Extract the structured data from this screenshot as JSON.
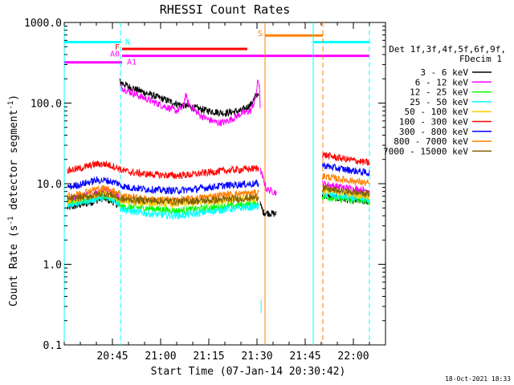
{
  "chart_data": {
    "type": "line",
    "title": "RHESSI Count Rates",
    "xlabel": "Start Time (07-Jan-14 20:30:42)",
    "ylabel_main": "Count Rate (s",
    "ylabel_sup1": "-1",
    "ylabel_mid": " detector segment",
    "ylabel_sup2": "-1",
    "ylabel_end": ")",
    "y_scale": "log",
    "xlim_minutes_after_2030": [
      0,
      100
    ],
    "ylim": [
      0.1,
      1000
    ],
    "x_ticks": [
      {
        "minute": 15,
        "label": "20:45"
      },
      {
        "minute": 30,
        "label": "21:00"
      },
      {
        "minute": 45,
        "label": "21:15"
      },
      {
        "minute": 60,
        "label": "21:30"
      },
      {
        "minute": 75,
        "label": "21:45"
      },
      {
        "minute": 90,
        "label": "22:00"
      }
    ],
    "y_ticks": [
      {
        "value": 0.1,
        "label": "0.1"
      },
      {
        "value": 1,
        "label": "1.0"
      },
      {
        "value": 10,
        "label": "10.0"
      },
      {
        "value": 100,
        "label": "100.0"
      },
      {
        "value": 1000,
        "label": "1000.0"
      }
    ],
    "legend": {
      "placement": "right",
      "header1": "Det 1f,3f,4f,5f,6f,9f,",
      "header2": "FDecim 1"
    },
    "series": [
      {
        "name": "3 - 6 keV",
        "color": "#000000",
        "segments": [
          {
            "x": [
              1,
              8,
              12,
              15,
              17.2
            ],
            "y": [
              5.0,
              5.8,
              6.6,
              6.0,
              5.3
            ]
          },
          {
            "x": [
              17.3,
              20,
              25,
              30,
              35,
              40,
              45,
              50,
              55,
              58,
              59.5,
              60.5
            ],
            "y": [
              185,
              160,
              135,
              115,
              98,
              88,
              80,
              75,
              80,
              95,
              120,
              135
            ]
          },
          {
            "x": [
              61,
              62,
              66
            ],
            "y": [
              5.5,
              4.4,
              4.2
            ]
          },
          {
            "x": [
              80.3,
              85,
              90,
              95
            ],
            "y": [
              7.2,
              6.6,
              6.2,
              6.0
            ]
          }
        ]
      },
      {
        "name": "6 - 12 keV",
        "color": "#ff00ff",
        "segments": [
          {
            "x": [
              1,
              8,
              12,
              15,
              17.2
            ],
            "y": [
              6.2,
              7.4,
              8.4,
              7.8,
              6.8
            ]
          },
          {
            "x": [
              17.3,
              20,
              25,
              30,
              35,
              37,
              37.8,
              38.5,
              42,
              45,
              48,
              50,
              53,
              55,
              58,
              59.5,
              60.3,
              60.8,
              61
            ],
            "y": [
              160,
              140,
              115,
              95,
              80,
              88,
              128,
              100,
              72,
              62,
              57,
              58,
              66,
              74,
              80,
              110,
              190,
              170,
              80
            ]
          },
          {
            "x": [
              61.1,
              63,
              66
            ],
            "y": [
              14.5,
              8.5,
              7.8
            ]
          },
          {
            "x": [
              80.3,
              85,
              90,
              95
            ],
            "y": [
              10.0,
              9.2,
              8.6,
              8.2
            ]
          }
        ]
      },
      {
        "name": "12 - 25 keV",
        "color": "#00ff00",
        "segments": [
          {
            "x": [
              1,
              8,
              12,
              15,
              17.2
            ],
            "y": [
              5.6,
              6.4,
              7.0,
              6.6,
              5.8
            ]
          },
          {
            "x": [
              17.3,
              25,
              35,
              45,
              55,
              60.5
            ],
            "y": [
              5.2,
              5.0,
              4.6,
              5.0,
              5.4,
              5.6
            ]
          },
          {
            "x": [
              80.3,
              85,
              90,
              95
            ],
            "y": [
              7.0,
              6.5,
              6.2,
              6.0
            ]
          }
        ]
      },
      {
        "name": "25 - 50 keV",
        "color": "#00ffff",
        "segments": [
          {
            "x": [
              1,
              8,
              12,
              15,
              17.2
            ],
            "y": [
              5.4,
              6.2,
              6.8,
              6.3,
              5.6
            ]
          },
          {
            "x": [
              17.3,
              20,
              25,
              30,
              35,
              40,
              45,
              50,
              55,
              60.5
            ],
            "y": [
              5.0,
              4.6,
              4.3,
              4.1,
              4.0,
              4.2,
              4.5,
              4.8,
              5.0,
              5.2
            ]
          },
          {
            "x": [
              61.3,
              61.3
            ],
            "y": [
              0.25,
              0.36
            ]
          },
          {
            "x": [
              80.3,
              85,
              90,
              95
            ],
            "y": [
              7.5,
              7.0,
              6.6,
              6.3
            ]
          }
        ]
      },
      {
        "name": "50 - 100 keV",
        "color": "#ffcc00",
        "segments": [
          {
            "x": [
              1,
              8,
              12,
              15,
              17.2
            ],
            "y": [
              6.0,
              7.0,
              7.6,
              7.1,
              6.4
            ]
          },
          {
            "x": [
              17.3,
              25,
              35,
              45,
              55,
              60.5
            ],
            "y": [
              6.0,
              5.8,
              5.6,
              6.0,
              6.4,
              6.6
            ]
          },
          {
            "x": [
              80.3,
              85,
              90,
              95
            ],
            "y": [
              8.3,
              7.8,
              7.4,
              7.0
            ]
          }
        ]
      },
      {
        "name": "100 - 300 keV",
        "color": "#ff0000",
        "segments": [
          {
            "x": [
              1,
              5,
              10,
              13,
              15,
              17.2
            ],
            "y": [
              14.5,
              15.5,
              17.5,
              17.5,
              16.5,
              15.5
            ]
          },
          {
            "x": [
              17.3,
              20,
              25,
              30,
              35,
              40,
              45,
              50,
              55,
              60.5
            ],
            "y": [
              15.0,
              14.0,
              13.2,
              12.8,
              12.6,
              13.0,
              13.8,
              14.5,
              15.0,
              15.5
            ]
          },
          {
            "x": [
              80.3,
              85,
              90,
              95
            ],
            "y": [
              23,
              21,
              19.5,
              18
            ]
          }
        ]
      },
      {
        "name": "300 - 800 keV",
        "color": "#0000ff",
        "segments": [
          {
            "x": [
              1,
              5,
              10,
              13,
              15,
              17.2
            ],
            "y": [
              9.0,
              9.8,
              11.0,
              11.0,
              10.5,
              10.0
            ]
          },
          {
            "x": [
              17.3,
              20,
              25,
              30,
              35,
              40,
              45,
              50,
              55,
              60.5
            ],
            "y": [
              9.5,
              9.0,
              8.6,
              8.3,
              8.2,
              8.5,
              9.0,
              9.5,
              9.8,
              10.0
            ]
          },
          {
            "x": [
              80.3,
              85,
              90,
              95
            ],
            "y": [
              17,
              15.5,
              14.5,
              13.5
            ]
          }
        ]
      },
      {
        "name": "800 - 7000 keV",
        "color": "#ff8000",
        "segments": [
          {
            "x": [
              1,
              5,
              10,
              13,
              15,
              17.2
            ],
            "y": [
              7.0,
              7.6,
              8.6,
              8.7,
              8.2,
              7.8
            ]
          },
          {
            "x": [
              17.3,
              20,
              25,
              30,
              35,
              40,
              45,
              50,
              55,
              60.5
            ],
            "y": [
              7.3,
              6.9,
              6.5,
              6.3,
              6.3,
              6.5,
              6.9,
              7.3,
              7.5,
              7.7
            ]
          },
          {
            "x": [
              80.3,
              85,
              90,
              95
            ],
            "y": [
              12.5,
              11.5,
              10.8,
              10.0
            ]
          }
        ]
      },
      {
        "name": "7000 - 15000 keV",
        "color": "#806000",
        "segments": [
          {
            "x": [
              1,
              8,
              12,
              15,
              17.2
            ],
            "y": [
              6.4,
              7.0,
              7.6,
              7.2,
              6.6
            ]
          },
          {
            "x": [
              17.3,
              25,
              35,
              45,
              55,
              60.5
            ],
            "y": [
              6.4,
              6.2,
              6.0,
              6.2,
              6.5,
              6.8
            ]
          },
          {
            "x": [
              80.3,
              85,
              90,
              95
            ],
            "y": [
              8.8,
              8.2,
              7.8,
              7.5
            ]
          }
        ]
      }
    ],
    "flags": [
      {
        "label": "N",
        "color": "#00ffff",
        "x0": 0,
        "x1": 17.5,
        "y": 570
      },
      {
        "label": "",
        "color": "#00ffff",
        "x0": 77.5,
        "x1": 95,
        "y": 570
      },
      {
        "label": "F",
        "color": "#ff0000",
        "x0": 18,
        "x1": 57,
        "y": 470
      },
      {
        "label": "A0",
        "color": "#ff00ff",
        "x0": 18,
        "x1": 95,
        "y": 385
      },
      {
        "label": "A1",
        "color": "#ff00ff",
        "x0": 0,
        "x1": 18,
        "y": 320
      },
      {
        "label": "S",
        "color": "#ff8000",
        "x0": 62.5,
        "x1": 80.5,
        "y": 690
      }
    ],
    "vlines": [
      {
        "x": 0,
        "color": "#00ffff",
        "style": "solid"
      },
      {
        "x": 17.5,
        "color": "#00ffff",
        "style": "dashed"
      },
      {
        "x": 62.5,
        "color": "#ff8000",
        "style": "solid"
      },
      {
        "x": 77.5,
        "color": "#00ffff",
        "style": "solid"
      },
      {
        "x": 80.5,
        "color": "#ff8000",
        "style": "dashed"
      },
      {
        "x": 95,
        "color": "#00ffff",
        "style": "dashed"
      }
    ],
    "footer_timestamp": "18-Oct-2021 18:33"
  }
}
